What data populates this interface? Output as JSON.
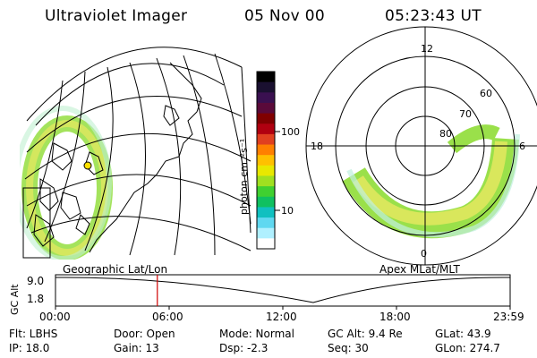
{
  "header": {
    "instrument": "Ultraviolet Imager",
    "date": "05 Nov 00",
    "time": "05:23:43 UT"
  },
  "colorbar": {
    "unit": "photon cm⁻²s⁻¹",
    "tick_labels": [
      "100",
      "10"
    ],
    "colors": [
      "#000000",
      "#1a1030",
      "#3a1050",
      "#5a0a3a",
      "#800000",
      "#b00010",
      "#e04020",
      "#ff8000",
      "#ffc000",
      "#e8e800",
      "#a0e020",
      "#40d030",
      "#10c060",
      "#10c0c0",
      "#60d8f0",
      "#b0f0ff",
      "#ffffff"
    ]
  },
  "polar": {
    "mlt_labels": {
      "top": "12",
      "left": "18",
      "right": "6",
      "bottom": "0"
    },
    "lat_labels": [
      "60",
      "70",
      "80"
    ]
  },
  "captions": {
    "left": "Geographic Lat/Lon",
    "right": "Apex MLat/MLT"
  },
  "timeline": {
    "axis_label": "GC Alt",
    "y_ticks": [
      "9.0",
      "1.8"
    ],
    "x_ticks": [
      "00:00",
      "06:00",
      "12:00",
      "18:00",
      "23:59"
    ],
    "current_time_fraction": 0.224
  },
  "status": {
    "flt": "Flt: LBHS",
    "ip": "IP: 18.0",
    "door": "Door: Open",
    "gain": "Gain: 13",
    "mode": "Mode: Normal",
    "dsp": "Dsp:    -2.3",
    "gcalt": "GC Alt: 9.4 Re",
    "seq": "Seq: 30",
    "glat": "GLat:  43.9",
    "glon": "GLon: 274.7"
  }
}
